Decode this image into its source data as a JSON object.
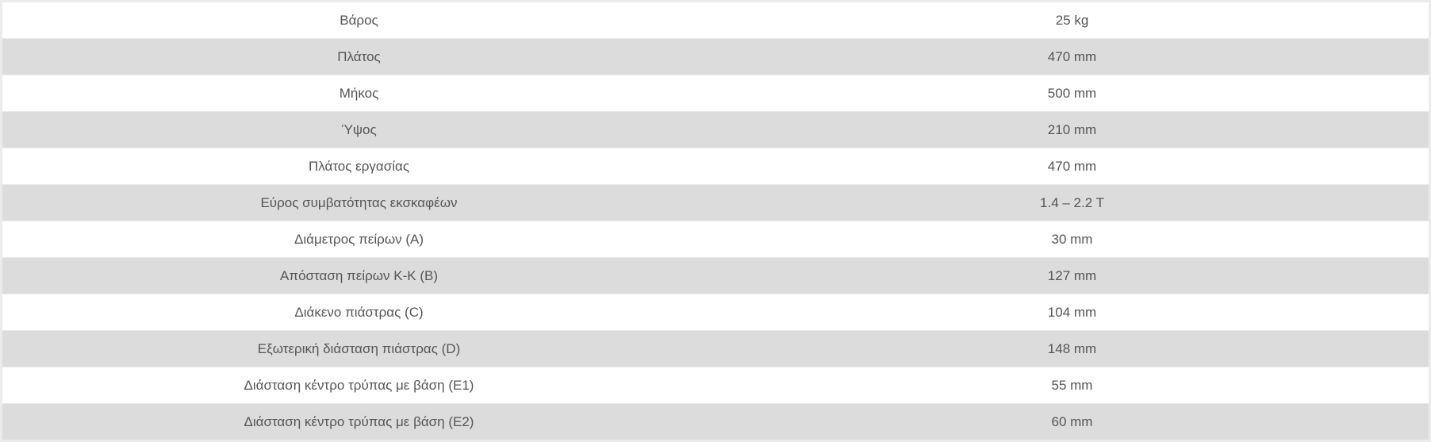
{
  "specs": [
    {
      "label": "Βάρος",
      "value": "25 kg"
    },
    {
      "label": "Πλάτος",
      "value": "470 mm"
    },
    {
      "label": "Μήκος",
      "value": "500 mm"
    },
    {
      "label": "Ύψος",
      "value": "210 mm"
    },
    {
      "label": "Πλάτος εργασίας",
      "value": "470 mm"
    },
    {
      "label": "Εύρος συμβατότητας εκσκαφέων",
      "value": "1.4 – 2.2 T"
    },
    {
      "label": "Διάμετρος πείρων (A)",
      "value": "30 mm"
    },
    {
      "label": "Απόσταση πείρων Κ-Κ (B)",
      "value": "127 mm"
    },
    {
      "label": "Διάκενο πιάστρας (C)",
      "value": "104 mm"
    },
    {
      "label": "Εξωτερική διάσταση πιάστρας (D)",
      "value": "148 mm"
    },
    {
      "label": "Διάσταση κέντρο τρύπας με βάση (E1)",
      "value": "55 mm"
    },
    {
      "label": "Διάσταση κέντρο τρύπας με βάση (E2)",
      "value": "60 mm"
    }
  ]
}
